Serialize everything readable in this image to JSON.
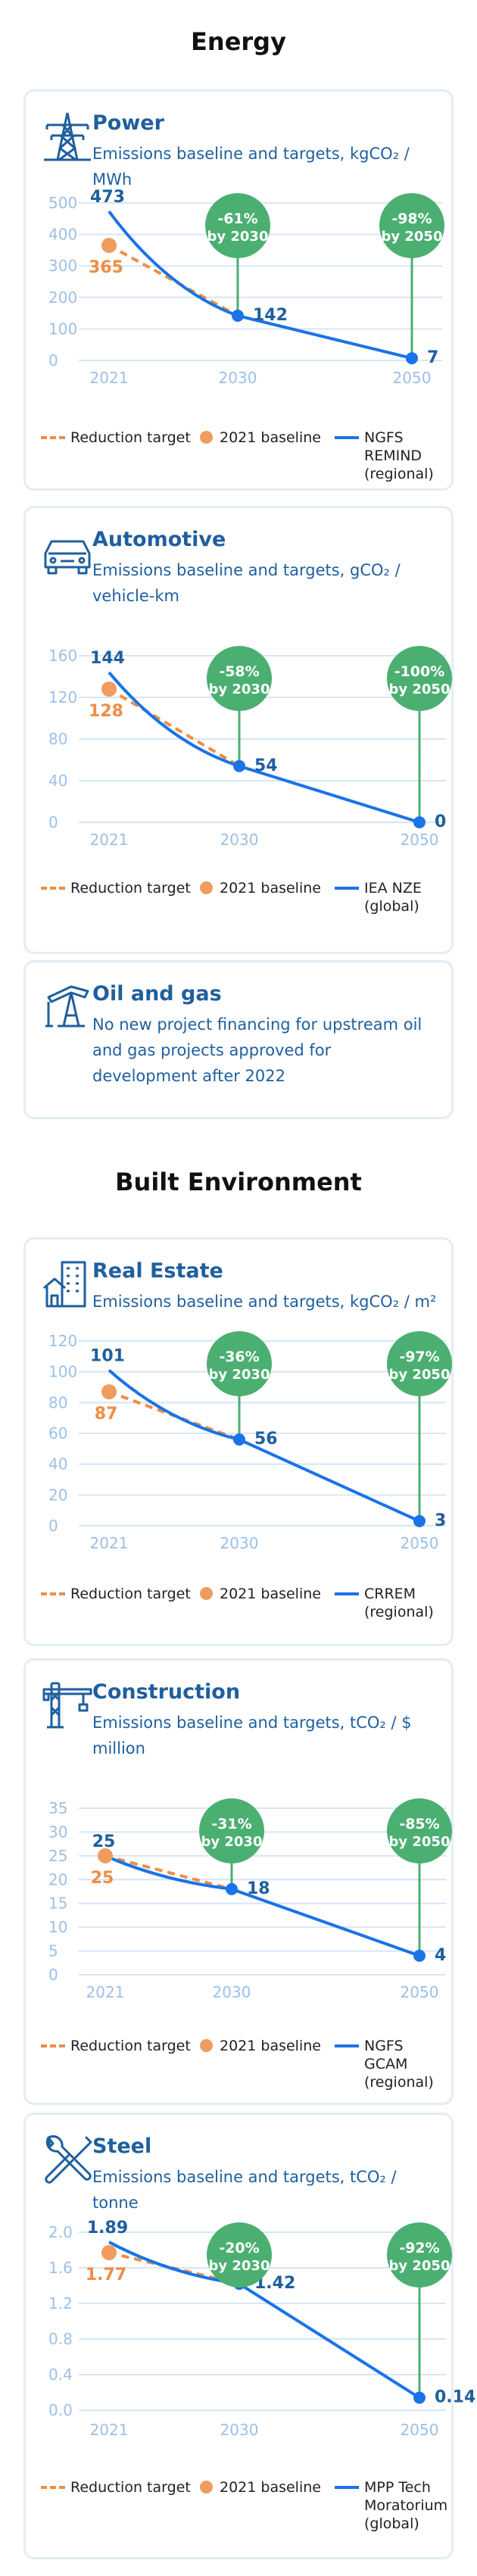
{
  "sections": {
    "energy": "Energy",
    "built": "Built Environment"
  },
  "legend": {
    "reduction": "Reduction target",
    "baseline": "2021 baseline"
  },
  "oil_gas": {
    "icon": "oil-pump-icon",
    "title": "Oil and gas",
    "subtitle": "No new project financing for upstream oil and gas projects approved for development after 2022"
  },
  "colors": {
    "pathway": "#1a73e8",
    "target": "#ef8d45",
    "bubble": "#4caf72",
    "text_blue": "#1f5f9e",
    "grid": "#d6e6f7",
    "axis": "#9cc0e8"
  },
  "chart_data": [
    {
      "id": "power",
      "icon": "power-pylon-icon",
      "type": "line",
      "title": "Power",
      "subtitle": "Emissions baseline and targets, kgCO₂ / MWh",
      "x": [
        2021,
        2030,
        2050
      ],
      "xticks": [
        "2021",
        "2030",
        "2050"
      ],
      "yticks": [
        0,
        100,
        200,
        300,
        400,
        500
      ],
      "ylim": [
        0,
        500
      ],
      "pathway": {
        "name": "NGFS REMIND (regional)",
        "values": [
          473,
          142,
          7
        ]
      },
      "baseline": 365,
      "targets": [
        {
          "year": 2030,
          "value": 142,
          "label": "-61%",
          "by": "by 2030"
        },
        {
          "year": 2050,
          "value": 7,
          "label": "-98%",
          "by": "by 2050"
        }
      ]
    },
    {
      "id": "automotive",
      "icon": "car-icon",
      "type": "line",
      "title": "Automotive",
      "subtitle": "Emissions baseline and targets, gCO₂ / vehicle-km",
      "x": [
        2021,
        2030,
        2050
      ],
      "xticks": [
        "2021",
        "2030",
        "2050"
      ],
      "yticks": [
        0,
        40,
        80,
        120,
        160
      ],
      "ylim": [
        0,
        160
      ],
      "pathway": {
        "name": "IEA NZE (global)",
        "values": [
          144,
          54,
          0
        ]
      },
      "baseline": 128,
      "targets": [
        {
          "year": 2030,
          "value": 54,
          "label": "-58%",
          "by": "by 2030"
        },
        {
          "year": 2050,
          "value": 0,
          "label": "-100%",
          "by": "by 2050"
        }
      ]
    },
    {
      "id": "realestate",
      "icon": "building-house-icon",
      "type": "line",
      "title": "Real Estate",
      "subtitle": "Emissions baseline and targets, kgCO₂ / m²",
      "x": [
        2021,
        2030,
        2050
      ],
      "xticks": [
        "2021",
        "2030",
        "2050"
      ],
      "yticks": [
        0,
        20,
        40,
        60,
        80,
        100,
        120
      ],
      "ylim": [
        0,
        120
      ],
      "pathway": {
        "name": "CRREM (regional)",
        "values": [
          101,
          56,
          3
        ]
      },
      "baseline": 87,
      "targets": [
        {
          "year": 2030,
          "value": 56,
          "label": "-36%",
          "by": "by 2030"
        },
        {
          "year": 2050,
          "value": 3,
          "label": "-97%",
          "by": "by 2050"
        }
      ]
    },
    {
      "id": "construction",
      "icon": "crane-icon",
      "type": "line",
      "title": "Construction",
      "subtitle": "Emissions baseline and targets, tCO₂ / $ million",
      "x": [
        2021,
        2030,
        2050
      ],
      "xticks": [
        "2021",
        "2030",
        "2050"
      ],
      "yticks": [
        0,
        5,
        10,
        15,
        20,
        25,
        30,
        35
      ],
      "ylim": [
        0,
        35
      ],
      "pathway": {
        "name": "NGFS GCAM (regional)",
        "values": [
          25,
          18,
          4
        ]
      },
      "baseline": 25,
      "targets": [
        {
          "year": 2030,
          "value": 18,
          "label": "-31%",
          "by": "by 2030"
        },
        {
          "year": 2050,
          "value": 4,
          "label": "-85%",
          "by": "by 2050"
        }
      ]
    },
    {
      "id": "steel",
      "icon": "wrench-tools-icon",
      "type": "line",
      "title": "Steel",
      "subtitle": "Emissions baseline and targets, tCO₂ / tonne",
      "x": [
        2021,
        2030,
        2050
      ],
      "xticks": [
        "2021",
        "2030",
        "2050"
      ],
      "yticks": [
        "0.0",
        "0.4",
        "0.8",
        "1.2",
        "1.6",
        "2.0"
      ],
      "ylim": [
        0,
        2.0
      ],
      "pathway": {
        "name": "MPP Tech Moratorium (global)",
        "values": [
          1.89,
          1.42,
          0.14
        ]
      },
      "baseline": 1.77,
      "targets": [
        {
          "year": 2030,
          "value": 1.42,
          "label": "-20%",
          "by": "by 2030"
        },
        {
          "year": 2050,
          "value": 0.14,
          "label": "-92%",
          "by": "by 2050"
        }
      ]
    }
  ]
}
